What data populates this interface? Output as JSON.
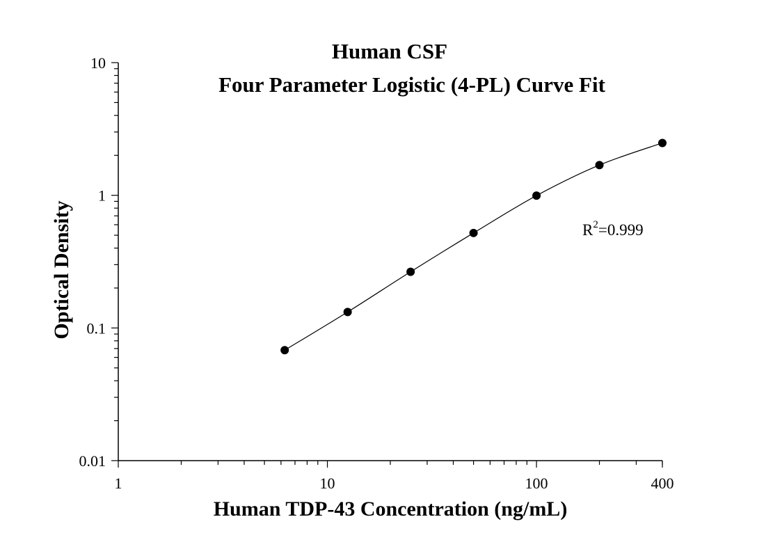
{
  "chart_data": {
    "type": "scatter",
    "title": "Human  CSF",
    "subtitle": "Four Parameter Logistic (4-PL) Curve Fit",
    "xlabel": "Human TDP-43 Concentration (ng/mL)",
    "ylabel": "Optical Density",
    "x_scale": "log",
    "y_scale": "log",
    "xlim": [
      1,
      400
    ],
    "ylim": [
      0.01,
      10
    ],
    "x_ticks": [
      {
        "value": 1,
        "label": "1"
      },
      {
        "value": 10,
        "label": "10"
      },
      {
        "value": 100,
        "label": "100"
      },
      {
        "value": 400,
        "label": "400"
      }
    ],
    "y_ticks": [
      {
        "value": 10,
        "label": "10"
      },
      {
        "value": 1,
        "label": "1"
      },
      {
        "value": 0.1,
        "label": "0.1"
      },
      {
        "value": 0.01,
        "label": "0.01"
      }
    ],
    "series": [
      {
        "points": [
          {
            "x": 6.25,
            "y": 0.068
          },
          {
            "x": 12.5,
            "y": 0.132
          },
          {
            "x": 25,
            "y": 0.265
          },
          {
            "x": 50,
            "y": 0.52
          },
          {
            "x": 100,
            "y": 0.995
          },
          {
            "x": 200,
            "y": 1.69
          },
          {
            "x": 400,
            "y": 2.48
          }
        ]
      }
    ],
    "annotation": {
      "prefix": "R",
      "sup": "2",
      "text": "=0.999"
    },
    "grid": false,
    "legend": "none"
  }
}
